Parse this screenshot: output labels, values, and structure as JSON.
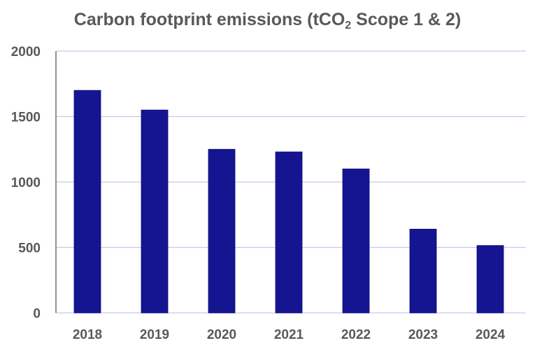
{
  "chart_data": {
    "type": "bar",
    "title": {
      "main": "Carbon footprint emissions (tCO",
      "subscript": "2",
      "suffix": " Scope 1 & 2)"
    },
    "categories": [
      "2018",
      "2019",
      "2020",
      "2021",
      "2022",
      "2023",
      "2024"
    ],
    "values": [
      1700,
      1550,
      1250,
      1230,
      1100,
      640,
      515
    ],
    "xlabel": "",
    "ylabel": "",
    "ylim": [
      0,
      2000
    ],
    "yticks": [
      0,
      500,
      1000,
      1500,
      2000
    ],
    "grid": true,
    "legend": "none",
    "colors": {
      "bar": "#151592",
      "grid": "#c8c8f0",
      "axis": "#6e6e6e",
      "text": "#595959"
    }
  }
}
